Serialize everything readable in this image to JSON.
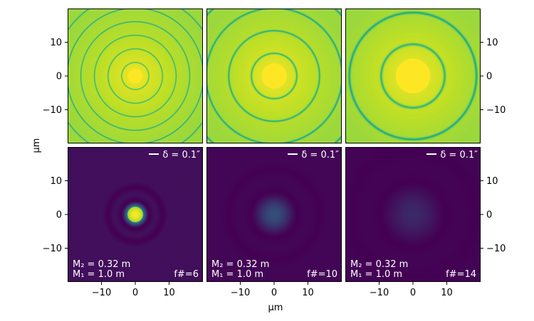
{
  "chart_data": [
    {
      "type": "heatmap",
      "row": "top",
      "column": 1,
      "pattern": "log-scaled airy pattern",
      "f_number": 6,
      "xlim": [
        -20,
        20
      ],
      "ylim": [
        -20,
        20
      ]
    },
    {
      "type": "heatmap",
      "row": "top",
      "column": 2,
      "pattern": "log-scaled airy pattern",
      "f_number": 10,
      "xlim": [
        -20,
        20
      ],
      "ylim": [
        -20,
        20
      ]
    },
    {
      "type": "heatmap",
      "row": "top",
      "column": 3,
      "pattern": "log-scaled airy pattern",
      "f_number": 14,
      "xlim": [
        -20,
        20
      ],
      "ylim": [
        -20,
        20
      ]
    },
    {
      "type": "heatmap",
      "row": "bottom",
      "column": 1,
      "pattern": "linear airy spot",
      "f_number": 6,
      "xlim": [
        -20,
        20
      ],
      "ylim": [
        -20,
        20
      ],
      "annotations": {
        "scale": "δ = 0.1″",
        "m2": "M₂ = 0.32 m",
        "m1": "M₁ = 1.0 m",
        "fnum": "f#=6"
      }
    },
    {
      "type": "heatmap",
      "row": "bottom",
      "column": 2,
      "pattern": "linear airy spot",
      "f_number": 10,
      "xlim": [
        -20,
        20
      ],
      "ylim": [
        -20,
        20
      ],
      "annotations": {
        "scale": "δ = 0.1″",
        "m2": "M₂ = 0.32 m",
        "m1": "M₁ = 1.0 m",
        "fnum": "f#=10"
      }
    },
    {
      "type": "heatmap",
      "row": "bottom",
      "column": 3,
      "pattern": "linear airy spot",
      "f_number": 14,
      "xlim": [
        -20,
        20
      ],
      "ylim": [
        -20,
        20
      ],
      "annotations": {
        "scale": "δ = 0.1″",
        "m2": "M₂ = 0.32 m",
        "m1": "M₁ = 1.0 m",
        "fnum": "f#=14"
      }
    }
  ],
  "axes": {
    "xlabel": "μm",
    "ylabel": "μm",
    "ticks": [
      -10,
      0,
      10
    ],
    "tick_labels": [
      "−10",
      "0",
      "10"
    ]
  },
  "colors": {
    "background_dark": "#440154",
    "ring_dark": "#2a788e",
    "peak": "#fde725",
    "annotation": "#ffffff"
  }
}
